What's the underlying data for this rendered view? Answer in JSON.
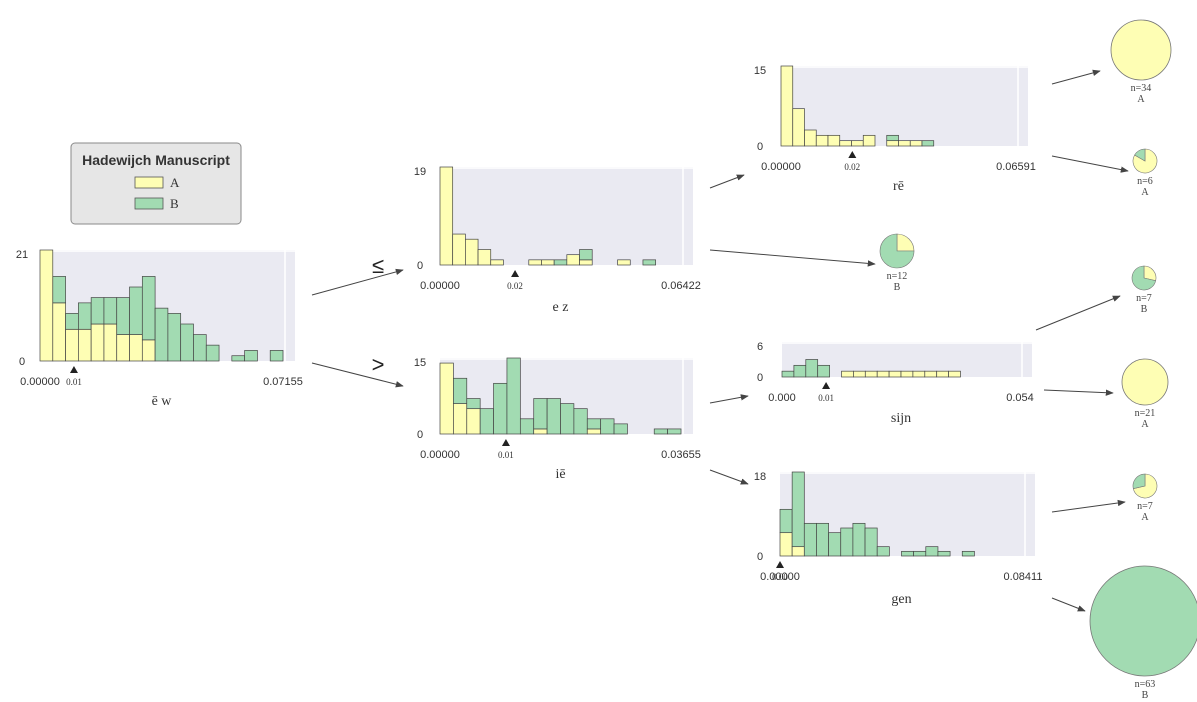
{
  "legend": {
    "title": "Hadewijch Manuscript",
    "items": [
      {
        "label": "A",
        "color": "#fefeb4"
      },
      {
        "label": "B",
        "color": "#a2dbb2"
      }
    ]
  },
  "colors": {
    "A": "#fefeb4",
    "B": "#a2dbb2",
    "plot_bg": "#eaeaf2"
  },
  "split_symbols": {
    "le": "≤",
    "gt": ">"
  },
  "chart_data": [
    {
      "id": "root",
      "type": "bar",
      "stacked": true,
      "xlabel": "ē w",
      "xlim": [
        0.0,
        0.07155
      ],
      "ylim": [
        0,
        21
      ],
      "x_ticks": [
        "0.00000",
        "0.07155"
      ],
      "y_ticks": [
        "0",
        "21"
      ],
      "split_value": 0.01,
      "split_label": "0.01",
      "series": [
        {
          "name": "A",
          "values": [
            21,
            11,
            6,
            6,
            7,
            7,
            5,
            5,
            4,
            0,
            0,
            0,
            0,
            0,
            0,
            0,
            0,
            0,
            0
          ]
        },
        {
          "name": "B",
          "values": [
            0,
            5,
            3,
            5,
            5,
            5,
            7,
            9,
            12,
            10,
            9,
            7,
            5,
            3,
            0,
            1,
            2,
            0,
            2
          ]
        }
      ]
    },
    {
      "id": "left",
      "type": "bar",
      "stacked": true,
      "xlabel": "e z",
      "xlim": [
        0.0,
        0.06422
      ],
      "ylim": [
        0,
        19
      ],
      "x_ticks": [
        "0.00000",
        "0.06422"
      ],
      "y_ticks": [
        "0",
        "19"
      ],
      "split_value": 0.02,
      "split_label": "0.02",
      "series": [
        {
          "name": "A",
          "values": [
            19,
            6,
            5,
            3,
            1,
            0,
            0,
            1,
            1,
            0,
            2,
            1,
            0,
            0,
            1,
            0,
            0,
            0,
            0
          ]
        },
        {
          "name": "B",
          "values": [
            0,
            0,
            0,
            0,
            0,
            0,
            0,
            0,
            0,
            1,
            0,
            2,
            0,
            0,
            0,
            0,
            1,
            0,
            0
          ]
        }
      ]
    },
    {
      "id": "left-left",
      "type": "bar",
      "stacked": true,
      "xlabel": "rē",
      "xlim": [
        0.0,
        0.06591
      ],
      "ylim": [
        0,
        15
      ],
      "x_ticks": [
        "0.00000",
        "0.06591"
      ],
      "y_ticks": [
        "0",
        "15"
      ],
      "split_value": 0.02,
      "split_label": "0.02",
      "series": [
        {
          "name": "A",
          "values": [
            15,
            7,
            3,
            2,
            2,
            1,
            1,
            2,
            0,
            1,
            1,
            1,
            0,
            0,
            0,
            0,
            0,
            0,
            0,
            0
          ]
        },
        {
          "name": "B",
          "values": [
            0,
            0,
            0,
            0,
            0,
            0,
            0,
            0,
            0,
            1,
            0,
            0,
            1,
            0,
            0,
            0,
            0,
            0,
            0,
            0
          ]
        }
      ]
    },
    {
      "id": "right",
      "type": "bar",
      "stacked": true,
      "xlabel": "iē",
      "xlim": [
        0.0,
        0.03655
      ],
      "ylim": [
        0,
        15
      ],
      "x_ticks": [
        "0.00000",
        "0.03655"
      ],
      "y_ticks": [
        "0",
        "15"
      ],
      "split_value": 0.01,
      "split_label": "0.01",
      "series": [
        {
          "name": "A",
          "values": [
            14,
            6,
            5,
            0,
            0,
            0,
            0,
            1,
            0,
            0,
            0,
            1,
            0,
            0,
            0,
            0,
            0,
            0
          ]
        },
        {
          "name": "B",
          "values": [
            0,
            5,
            2,
            5,
            10,
            15,
            3,
            6,
            7,
            6,
            5,
            2,
            3,
            2,
            0,
            0,
            1,
            1
          ]
        }
      ]
    },
    {
      "id": "right-left",
      "type": "bar",
      "stacked": true,
      "xlabel": "sijn",
      "xlim": [
        0.0,
        0.054
      ],
      "ylim": [
        0,
        6
      ],
      "x_ticks": [
        "0.000",
        "0.054"
      ],
      "y_ticks": [
        "0",
        "6"
      ],
      "split_value": 0.01,
      "split_label": "0.01",
      "series": [
        {
          "name": "A",
          "values": [
            0,
            0,
            0,
            0,
            0,
            1,
            1,
            1,
            1,
            1,
            1,
            1,
            1,
            1,
            1,
            0,
            0,
            0,
            0,
            0
          ]
        },
        {
          "name": "B",
          "values": [
            1,
            2,
            3,
            2,
            0,
            0,
            0,
            0,
            0,
            0,
            0,
            0,
            0,
            0,
            0,
            0,
            0,
            0,
            0,
            0
          ]
        }
      ]
    },
    {
      "id": "right-right",
      "type": "bar",
      "stacked": true,
      "xlabel": "gen",
      "xlim": [
        0.0,
        0.08411
      ],
      "ylim": [
        0,
        18
      ],
      "x_ticks": [
        "0.00000",
        "0.08411"
      ],
      "y_ticks": [
        "0",
        "18"
      ],
      "split_value": 0.0,
      "split_label": "0.00",
      "series": [
        {
          "name": "A",
          "values": [
            5,
            2,
            0,
            0,
            0,
            0,
            0,
            0,
            0,
            0,
            0,
            0,
            0,
            0,
            0,
            0,
            0,
            0,
            0,
            0
          ]
        },
        {
          "name": "B",
          "values": [
            5,
            16,
            7,
            7,
            5,
            6,
            7,
            6,
            2,
            0,
            1,
            1,
            2,
            1,
            0,
            1,
            0,
            0,
            0,
            0
          ]
        }
      ]
    },
    {
      "id": "leaf-1",
      "type": "pie",
      "n_label": "n=34",
      "class_label": "A",
      "values": [
        34,
        0
      ]
    },
    {
      "id": "leaf-2",
      "type": "pie",
      "n_label": "n=6",
      "class_label": "A",
      "values": [
        5,
        1
      ]
    },
    {
      "id": "leaf-3",
      "type": "pie",
      "n_label": "n=12",
      "class_label": "B",
      "values": [
        3,
        9
      ]
    },
    {
      "id": "leaf-4",
      "type": "pie",
      "n_label": "n=7",
      "class_label": "B",
      "values": [
        2,
        5
      ]
    },
    {
      "id": "leaf-5",
      "type": "pie",
      "n_label": "n=21",
      "class_label": "A",
      "values": [
        21,
        0
      ]
    },
    {
      "id": "leaf-6",
      "type": "pie",
      "n_label": "n=7",
      "class_label": "A",
      "values": [
        5,
        2
      ]
    },
    {
      "id": "leaf-7",
      "type": "pie",
      "n_label": "n=63",
      "class_label": "B",
      "values": [
        0,
        63
      ]
    }
  ]
}
